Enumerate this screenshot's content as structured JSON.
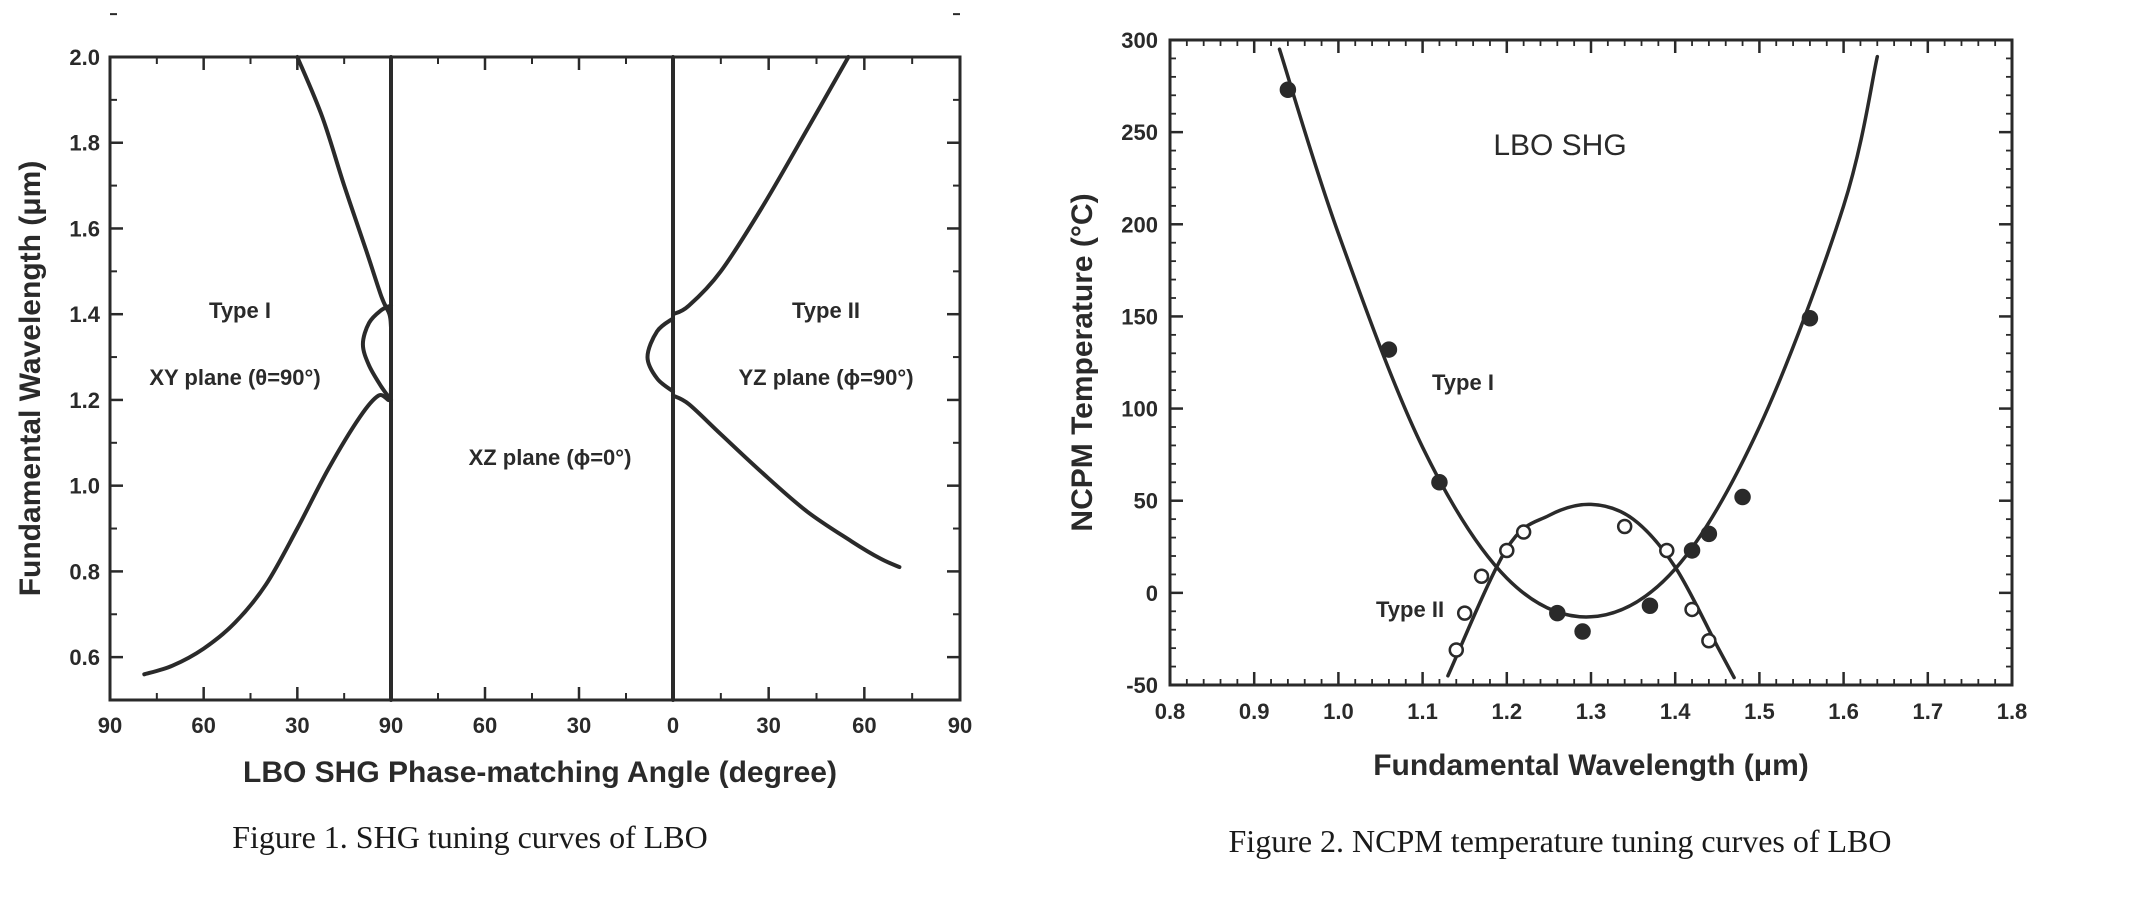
{
  "chart_data": [
    {
      "type": "line",
      "xlabel": "LBO SHG Phase-matching Angle (degree)",
      "ylabel": "Fundamental Wavelength (μm)",
      "caption": "Figure 1. SHG tuning curves of LBO",
      "x_tick_labels": [
        "90",
        "60",
        "30",
        "90",
        "60",
        "30",
        "0",
        "30",
        "60",
        "90"
      ],
      "y_ticks": [
        "0.6",
        "0.8",
        "1.0",
        "1.2",
        "1.4",
        "1.6",
        "1.8",
        "2.0"
      ],
      "ylim": [
        0.5,
        2.0
      ],
      "panels": [
        {
          "plane": "XY plane",
          "range": [
            90,
            0
          ]
        },
        {
          "plane": "XZ plane",
          "range": [
            90,
            0
          ]
        },
        {
          "plane": "YZ plane",
          "range": [
            0,
            90
          ]
        }
      ],
      "annotations": [
        {
          "text": "Type I",
          "panel": "XY plane"
        },
        {
          "text": "XY plane (θ=90°)",
          "panel": "XY plane"
        },
        {
          "text": "XZ plane (ϕ=0°)",
          "panel": "XZ plane"
        },
        {
          "text": "Type II",
          "panel": "YZ plane"
        },
        {
          "text": "YZ plane (ϕ=90°)",
          "panel": "YZ plane"
        }
      ],
      "series": [
        {
          "curve": "XY plane Type I",
          "x": [
            79,
            70,
            60,
            50,
            40,
            30,
            20,
            10,
            4,
            0.5,
            0
          ],
          "y": [
            0.56,
            0.58,
            0.62,
            0.68,
            0.77,
            0.9,
            1.04,
            1.16,
            1.21,
            1.2,
            1.23
          ]
        },
        {
          "curve": "XY plane upper",
          "x": [
            0,
            0.5,
            3,
            8,
            15,
            22,
            30
          ],
          "y": [
            1.37,
            1.4,
            1.44,
            1.55,
            1.7,
            1.86,
            2.0
          ]
        },
        {
          "curve": "XY plane loop",
          "x": [
            0,
            3,
            7,
            9,
            7,
            3,
            0
          ],
          "y": [
            1.2,
            1.23,
            1.28,
            1.33,
            1.38,
            1.41,
            1.42
          ]
        },
        {
          "curve": "XZ plane vertical",
          "x": [
            0,
            0
          ],
          "y": [
            0.5,
            2.0
          ]
        },
        {
          "curve": "XZ/YZ boundary vertical",
          "x": [
            0,
            0
          ],
          "y": [
            0.5,
            2.0
          ]
        },
        {
          "curve": "YZ plane Type II lower",
          "x": [
            0,
            5,
            15,
            28,
            42,
            56,
            65,
            71
          ],
          "y": [
            1.21,
            1.19,
            1.12,
            1.03,
            0.94,
            0.87,
            0.83,
            0.81
          ]
        },
        {
          "curve": "YZ plane Type II upper",
          "x": [
            0,
            5,
            15,
            28,
            42,
            55
          ],
          "y": [
            1.4,
            1.42,
            1.5,
            1.65,
            1.83,
            2.0
          ]
        },
        {
          "curve": "YZ plane loop",
          "x": [
            0,
            -5,
            -8,
            -5,
            0
          ],
          "y": [
            1.22,
            1.25,
            1.3,
            1.36,
            1.39
          ]
        }
      ]
    },
    {
      "type": "scatter",
      "title": "LBO SHG",
      "xlabel": "Fundamental Wavelength (μm)",
      "ylabel": "NCPM Temperature (°C)",
      "caption": "Figure 2. NCPM temperature tuning curves of LBO",
      "xlim": [
        0.8,
        1.8
      ],
      "ylim": [
        -50,
        300
      ],
      "x_ticks": [
        "0.8",
        "0.9",
        "1.0",
        "1.1",
        "1.2",
        "1.3",
        "1.4",
        "1.5",
        "1.6",
        "1.7",
        "1.8"
      ],
      "y_ticks": [
        "-50",
        "0",
        "50",
        "100",
        "150",
        "200",
        "250",
        "300"
      ],
      "annotations": [
        {
          "text": "Type I"
        },
        {
          "text": "Type II"
        }
      ],
      "series": [
        {
          "name": "Type I",
          "marker": "filled",
          "points": [
            [
              0.94,
              273
            ],
            [
              1.06,
              132
            ],
            [
              1.12,
              60
            ],
            [
              1.26,
              -11
            ],
            [
              1.29,
              -21
            ],
            [
              1.37,
              -7
            ],
            [
              1.42,
              23
            ],
            [
              1.44,
              32
            ],
            [
              1.48,
              52
            ],
            [
              1.56,
              149
            ]
          ],
          "fit": {
            "x": [
              0.93,
              1.0,
              1.1,
              1.2,
              1.3,
              1.4,
              1.5,
              1.6,
              1.64
            ],
            "y": [
              295,
              195,
              79,
              8,
              -13,
              13,
              90,
              210,
              291
            ]
          }
        },
        {
          "name": "Type II",
          "marker": "open",
          "points": [
            [
              1.14,
              -31
            ],
            [
              1.15,
              -11
            ],
            [
              1.17,
              9
            ],
            [
              1.2,
              23
            ],
            [
              1.22,
              33
            ],
            [
              1.34,
              36
            ],
            [
              1.39,
              23
            ],
            [
              1.42,
              -9
            ],
            [
              1.44,
              -26
            ]
          ],
          "fit": {
            "x": [
              1.13,
              1.2,
              1.25,
              1.3,
              1.35,
              1.4,
              1.45,
              1.47
            ],
            "y": [
              -45,
              24,
              42,
              48,
              40,
              14,
              -29,
              -46
            ]
          }
        }
      ]
    }
  ]
}
